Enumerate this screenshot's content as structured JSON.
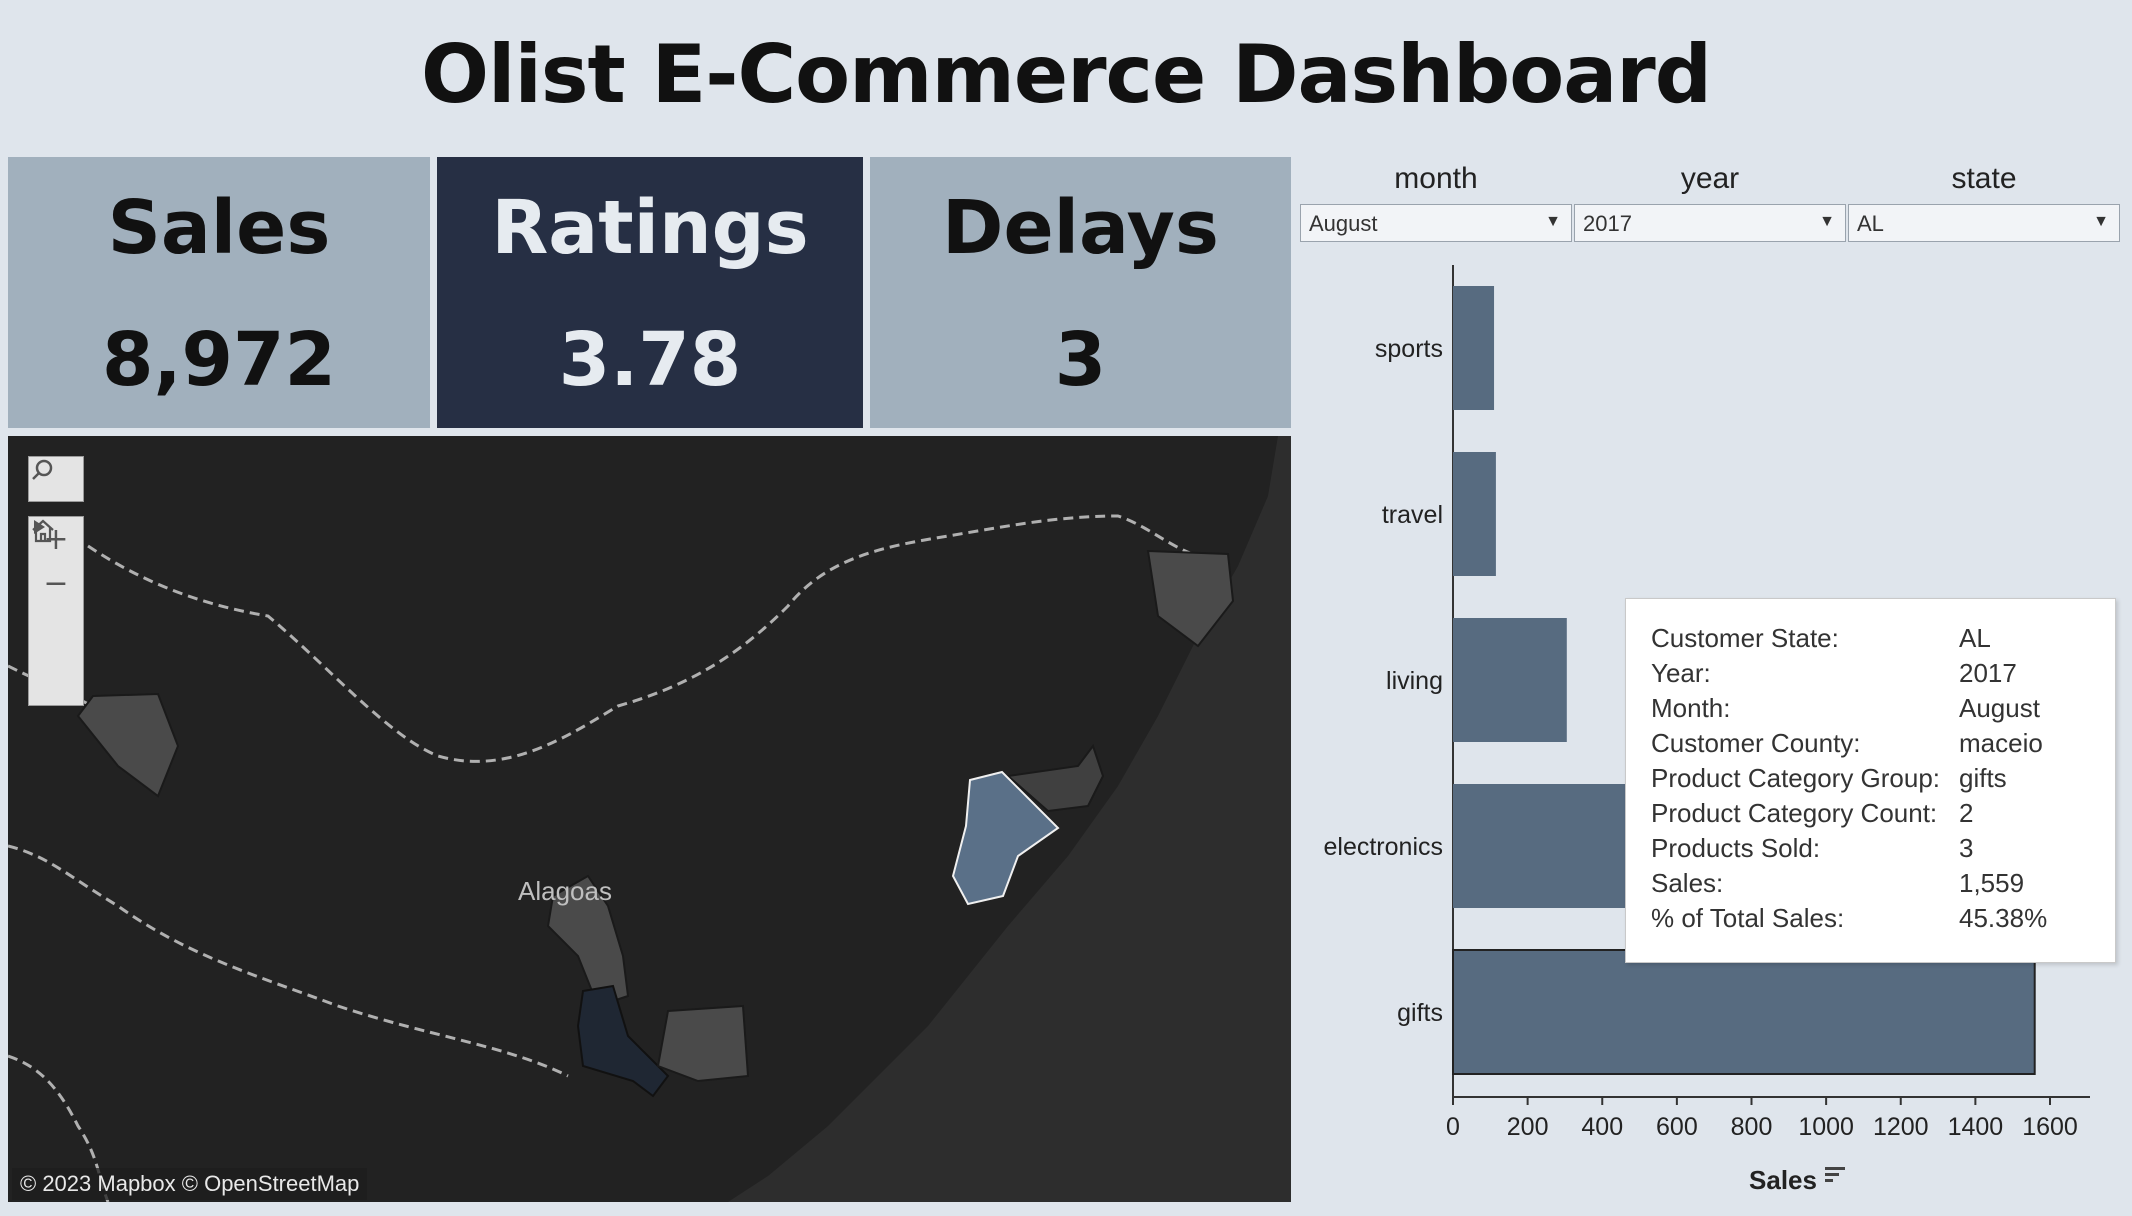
{
  "page": {
    "title": "Olist E-Commerce Dashboard"
  },
  "kpis": [
    {
      "label": "Sales",
      "value": "8,972"
    },
    {
      "label": "Ratings",
      "value": "3.78"
    },
    {
      "label": "Delays",
      "value": "3"
    }
  ],
  "filters": [
    {
      "label": "month",
      "value": "August"
    },
    {
      "label": "year",
      "value": "2017"
    },
    {
      "label": "state",
      "value": "AL"
    }
  ],
  "map": {
    "region_label": "Alagoas",
    "credit": "© 2023 Mapbox  © OpenStreetMap",
    "controls": [
      "search-icon",
      "zoom-in-icon",
      "zoom-out-icon",
      "home-icon",
      "play-icon"
    ]
  },
  "colors": {
    "bar": "#576b80",
    "kpi_light": "#a1b0bd",
    "kpi_dark": "#262f44",
    "background": "#dfe5ec"
  },
  "chart_data": {
    "type": "bar",
    "orientation": "horizontal",
    "categories": [
      "sports",
      "travel",
      "living",
      "electronics",
      "gifts"
    ],
    "values": [
      110,
      115,
      305,
      1380,
      1559
    ],
    "xlabel": "Sales",
    "xlim": [
      0,
      1600
    ],
    "x_ticks": [
      "0",
      "200",
      "400",
      "600",
      "800",
      "1000",
      "1200",
      "1400",
      "1600"
    ]
  },
  "tooltip": {
    "rows": [
      {
        "key": "Customer State:",
        "value": "AL"
      },
      {
        "key": "Year:",
        "value": "2017"
      },
      {
        "key": "Month:",
        "value": "August"
      },
      {
        "key": "Customer County:",
        "value": "maceio"
      },
      {
        "key": "Product Category Group:",
        "value": "gifts"
      },
      {
        "key": "Product Category Count:",
        "value": "2"
      },
      {
        "key": "Products Sold:",
        "value": "3"
      },
      {
        "key": "Sales:",
        "value": "1,559"
      },
      {
        "key": "% of Total Sales:",
        "value": "45.38%"
      }
    ]
  }
}
